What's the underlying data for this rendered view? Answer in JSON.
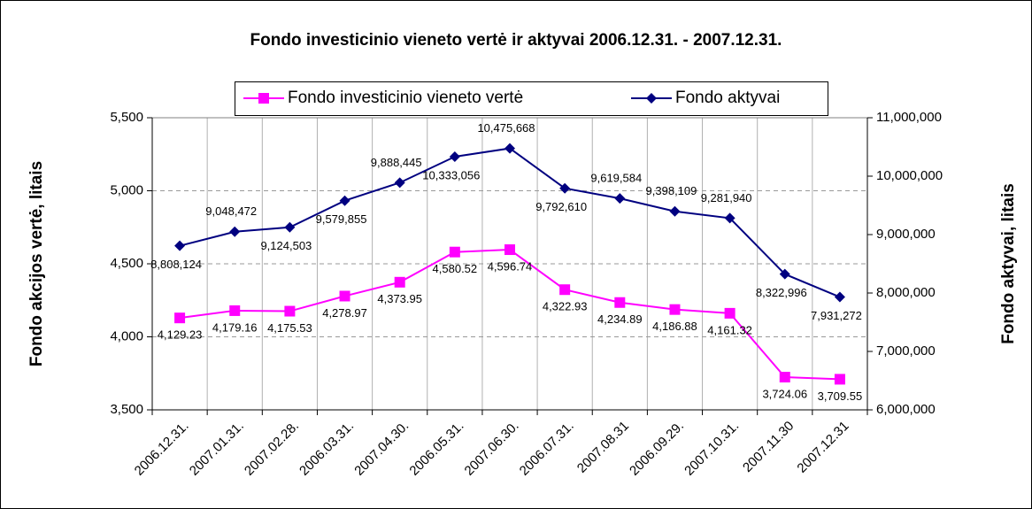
{
  "chart_data": {
    "type": "line",
    "title": "Fondo investicinio vieneto vertė ir aktyvai 2006.12.31. - 2007.12.31.",
    "y_label": "Fondo akcijos vertė, litais",
    "y2_label": "Fondo aktyvai, litais",
    "categories": [
      "2006.12.31.",
      "2007.01.31.",
      "2007.02.28.",
      "2006.03.31.",
      "2007.04.30.",
      "2006.05.31.",
      "2007.06.30.",
      "2006.07.31.",
      "2007.08.31",
      "2006.09.29.",
      "2007.10.31.",
      "2007.11.30",
      "2007.12.31"
    ],
    "series": [
      {
        "name": "Fondo investicinio vieneto vertė",
        "color": "#ff00ff",
        "marker": "square",
        "values": [
          4129.23,
          4179.16,
          4175.53,
          4278.97,
          4373.95,
          4580.52,
          4596.74,
          4322.93,
          4234.89,
          4186.88,
          4161.32,
          3724.06,
          3709.55
        ],
        "value_labels": [
          "4,129.23",
          "4,179.16",
          "4,175.53",
          "4,278.97",
          "4,373.95",
          "4,580.52",
          "4,596.74",
          "4,322.93",
          "4,234.89",
          "4,186.88",
          "4,161.32",
          "3,724.06",
          "3,709.55"
        ]
      },
      {
        "name": "Fondo aktyvai",
        "color": "#000080",
        "marker": "diamond",
        "axis": "y2",
        "values": [
          8808124,
          9048472,
          9124503,
          9579855,
          9888445,
          10333056,
          10475668,
          9792610,
          9619584,
          9398109,
          9281940,
          8322996,
          7931272
        ],
        "value_labels": [
          "8,808,124",
          "9,048,472",
          "9,124,503",
          "9,579,855",
          "9,888,445",
          "10,333,056",
          "10,475,668",
          "9,792,610",
          "9,619,584",
          "9,398,109",
          "9,281,940",
          "8,322,996",
          "7,931,272"
        ]
      }
    ],
    "ylim": [
      3500,
      5500
    ],
    "yticks": [
      {
        "value": 3500,
        "label": "3,500"
      },
      {
        "value": 4000,
        "label": "4,000"
      },
      {
        "value": 4500,
        "label": "4,500"
      },
      {
        "value": 5000,
        "label": "5,000"
      },
      {
        "value": 5500,
        "label": "5,500"
      }
    ],
    "y2lim": [
      6000000,
      11000000
    ],
    "y2ticks": [
      {
        "value": 6000000,
        "label": "6,000,000"
      },
      {
        "value": 7000000,
        "label": "7,000,000"
      },
      {
        "value": 8000000,
        "label": "8,000,000"
      },
      {
        "value": 9000000,
        "label": "9,000,000"
      },
      {
        "value": 10000000,
        "label": "10,000,000"
      },
      {
        "value": 11000000,
        "label": "11,000,000"
      }
    ],
    "grid": true,
    "legend": "top"
  }
}
